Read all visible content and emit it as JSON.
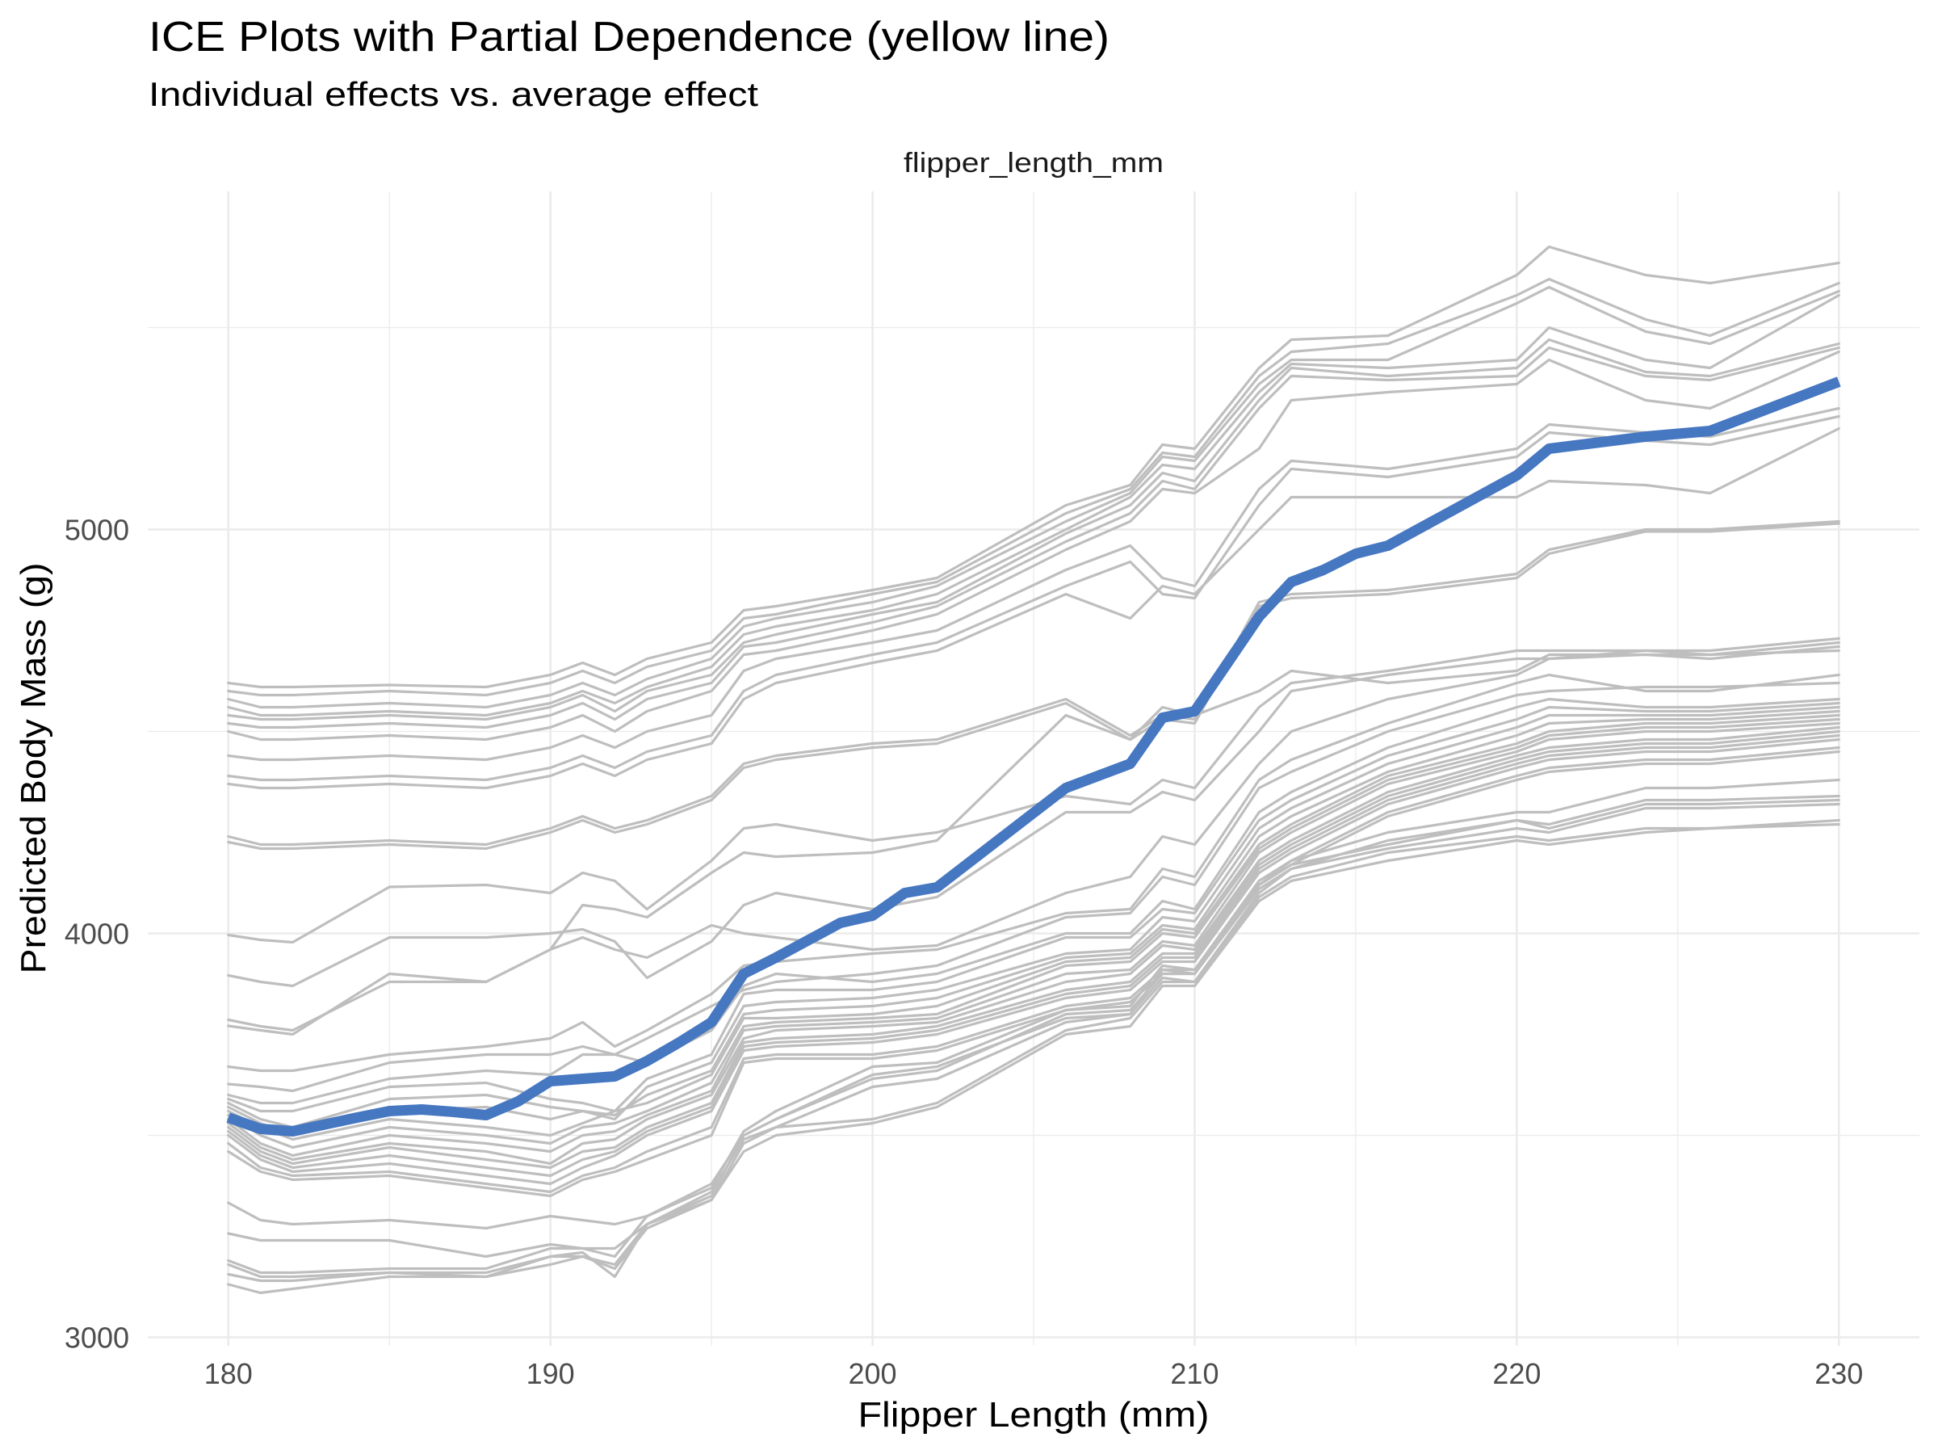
{
  "chart_data": {
    "type": "line",
    "title": "ICE Plots with Partial Dependence (yellow line)",
    "subtitle": "Individual effects vs. average effect",
    "facet_label": "flipper_length_mm",
    "xlabel": "Flipper Length (mm)",
    "ylabel": "Predicted Body Mass (g)",
    "xlim": [
      177.5,
      232.5
    ],
    "ylim": [
      2979,
      5837
    ],
    "x_ticks": [
      180,
      190,
      200,
      210,
      220,
      230
    ],
    "x_tick_labels": [
      "180",
      "190",
      "200",
      "210",
      "220",
      "230"
    ],
    "x_minor_ticks": [
      185,
      195,
      205,
      215,
      225
    ],
    "y_ticks": [
      3000,
      4000,
      5000
    ],
    "y_tick_labels": [
      "3000",
      "4000",
      "5000"
    ],
    "y_minor_ticks": [
      3500,
      4500,
      5500
    ],
    "grid": true,
    "legend": "none",
    "colors": {
      "ice": "#bebebe",
      "pd": "#4677c1",
      "grid": "#ebebeb",
      "tick_text": "#4d4d4d"
    },
    "ice_x": [
      180,
      181,
      182,
      185,
      188,
      190,
      191,
      192,
      193,
      195,
      196,
      197,
      200,
      202,
      206,
      208,
      209,
      210,
      212,
      213,
      216,
      220,
      221,
      224,
      226,
      230
    ],
    "ice_series": [
      [
        4620,
        4610,
        4610,
        4615,
        4610,
        4640,
        4670,
        4640,
        4680,
        4720,
        4800,
        4810,
        4850,
        4880,
        5060,
        5110,
        5210,
        5200,
        5400,
        5470,
        5480,
        5630,
        5700,
        5630,
        5610,
        5660
      ],
      [
        4600,
        4590,
        4590,
        4600,
        4590,
        4620,
        4650,
        4620,
        4660,
        4700,
        4780,
        4790,
        4840,
        4870,
        5040,
        5100,
        5190,
        5180,
        5380,
        5440,
        5460,
        5580,
        5620,
        5520,
        5480,
        5610
      ],
      [
        4580,
        4560,
        4560,
        4570,
        4560,
        4590,
        4620,
        4590,
        4630,
        4680,
        4760,
        4780,
        4820,
        4860,
        5020,
        5090,
        5180,
        5170,
        5360,
        5420,
        5420,
        5560,
        5600,
        5490,
        5460,
        5590
      ],
      [
        4560,
        4540,
        4540,
        4550,
        4540,
        4570,
        4600,
        4570,
        4610,
        4660,
        4740,
        4760,
        4800,
        4840,
        5000,
        5080,
        5160,
        5150,
        5340,
        5410,
        5400,
        5420,
        5500,
        5420,
        5400,
        5580
      ],
      [
        4540,
        4530,
        4530,
        4540,
        4530,
        4560,
        4590,
        4550,
        4600,
        4640,
        4720,
        4740,
        4790,
        4820,
        4990,
        5060,
        5140,
        5120,
        5320,
        5400,
        5380,
        5400,
        5470,
        5390,
        5380,
        5460
      ],
      [
        4520,
        4510,
        4510,
        4520,
        4510,
        4540,
        4570,
        4530,
        4580,
        4620,
        4710,
        4720,
        4770,
        4810,
        4970,
        5040,
        5120,
        5100,
        5300,
        5380,
        5370,
        5380,
        5450,
        5380,
        5370,
        5450
      ],
      [
        4500,
        4480,
        4480,
        4490,
        4480,
        4510,
        4540,
        4500,
        4550,
        4600,
        4690,
        4700,
        4750,
        4790,
        4950,
        5020,
        5100,
        5090,
        5200,
        5320,
        5340,
        5360,
        5420,
        5320,
        5300,
        5440
      ],
      [
        4440,
        4430,
        4430,
        4440,
        4430,
        4460,
        4490,
        4460,
        4500,
        4540,
        4650,
        4680,
        4720,
        4750,
        4900,
        4960,
        4880,
        4860,
        5100,
        5170,
        5150,
        5200,
        5260,
        5240,
        5230,
        5300
      ],
      [
        4390,
        4380,
        4380,
        4390,
        4380,
        4410,
        4440,
        4410,
        4450,
        4490,
        4600,
        4640,
        4690,
        4720,
        4860,
        4920,
        4840,
        4830,
        5060,
        5150,
        5130,
        5180,
        5240,
        5220,
        5210,
        5280
      ],
      [
        4370,
        4360,
        4360,
        4370,
        4360,
        4390,
        4420,
        4390,
        4430,
        4470,
        4580,
        4620,
        4670,
        4700,
        4840,
        4780,
        4860,
        4840,
        5000,
        5080,
        5080,
        5080,
        5120,
        5110,
        5090,
        5250
      ],
      [
        4240,
        4220,
        4220,
        4230,
        4220,
        4260,
        4290,
        4260,
        4280,
        4340,
        4420,
        4440,
        4470,
        4480,
        4580,
        4490,
        4540,
        4530,
        4820,
        4840,
        4850,
        4890,
        4950,
        5000,
        5000,
        5020
      ],
      [
        4226,
        4210,
        4210,
        4220,
        4210,
        4250,
        4280,
        4250,
        4270,
        4330,
        4410,
        4430,
        4460,
        4470,
        4570,
        4480,
        4530,
        4520,
        4810,
        4830,
        4840,
        4880,
        4940,
        4995,
        4995,
        5015
      ],
      [
        3996,
        3984,
        3978,
        4115,
        4120,
        4100,
        4150,
        4130,
        4060,
        4180,
        4260,
        4270,
        4230,
        4250,
        4340,
        4320,
        4380,
        4360,
        4560,
        4620,
        4650,
        4700,
        4700,
        4700,
        4690,
        4720
      ],
      [
        3896,
        3880,
        3870,
        3990,
        3990,
        4000,
        4010,
        3980,
        3890,
        3980,
        4070,
        4100,
        4060,
        4090,
        4300,
        4300,
        4350,
        4330,
        4500,
        4600,
        4640,
        4680,
        4680,
        4700,
        4700,
        4730
      ],
      [
        3786,
        3770,
        3760,
        3880,
        3880,
        3960,
        4070,
        4060,
        4040,
        4150,
        4200,
        4190,
        4200,
        4230,
        4540,
        4480,
        4560,
        4540,
        4600,
        4650,
        4620,
        4650,
        4690,
        4690,
        4680,
        4710
      ],
      [
        3771,
        3760,
        3750,
        3900,
        3880,
        3960,
        3990,
        3960,
        3940,
        4020,
        4000,
        3990,
        3960,
        3970,
        4100,
        4140,
        4240,
        4220,
        4420,
        4500,
        4580,
        4640,
        4680,
        4690,
        4690,
        4700
      ],
      [
        3670,
        3660,
        3660,
        3700,
        3720,
        3740,
        3780,
        3720,
        3760,
        3850,
        3920,
        3930,
        3950,
        3960,
        4050,
        4060,
        4160,
        4140,
        4380,
        4430,
        4520,
        4620,
        4640,
        4600,
        4600,
        4640
      ],
      [
        3627,
        3620,
        3610,
        3680,
        3700,
        3700,
        3720,
        3700,
        3740,
        3820,
        3860,
        3880,
        3900,
        3920,
        4040,
        4050,
        4140,
        4120,
        4360,
        4400,
        4500,
        4590,
        4600,
        4610,
        4610,
        4620
      ],
      [
        3600,
        3580,
        3580,
        3640,
        3660,
        3650,
        3700,
        3700,
        3680,
        3760,
        3870,
        3900,
        3880,
        3900,
        4000,
        4000,
        4080,
        4060,
        4300,
        4350,
        4460,
        4560,
        4580,
        4560,
        4560,
        4580
      ],
      [
        3590,
        3560,
        3560,
        3620,
        3630,
        3590,
        3580,
        3560,
        3640,
        3700,
        3850,
        3860,
        3860,
        3880,
        3990,
        3990,
        4060,
        4050,
        4280,
        4330,
        4440,
        4530,
        4560,
        4550,
        4550,
        4570
      ],
      [
        3580,
        3540,
        3520,
        3590,
        3600,
        3570,
        3560,
        3540,
        3620,
        3680,
        3820,
        3830,
        3840,
        3860,
        3950,
        3960,
        4040,
        4030,
        4260,
        4310,
        4420,
        4510,
        4540,
        4540,
        4540,
        4560
      ],
      [
        3570,
        3530,
        3500,
        3560,
        3570,
        3540,
        3560,
        3550,
        3600,
        3660,
        3800,
        3810,
        3820,
        3840,
        3940,
        3950,
        4020,
        4010,
        4240,
        4290,
        4400,
        4490,
        4520,
        4530,
        4530,
        4550
      ],
      [
        3560,
        3520,
        3490,
        3540,
        3520,
        3500,
        3530,
        3560,
        3580,
        3650,
        3790,
        3790,
        3800,
        3820,
        3930,
        3940,
        4010,
        4000,
        4220,
        4270,
        4390,
        4470,
        4500,
        4520,
        4520,
        4540
      ],
      [
        3550,
        3500,
        3470,
        3520,
        3500,
        3480,
        3520,
        3530,
        3560,
        3630,
        3770,
        3780,
        3790,
        3800,
        3920,
        3930,
        4000,
        3990,
        4210,
        4260,
        4380,
        4460,
        4490,
        4510,
        4510,
        4530
      ],
      [
        3540,
        3480,
        3450,
        3500,
        3480,
        3460,
        3500,
        3510,
        3550,
        3610,
        3760,
        3770,
        3780,
        3790,
        3900,
        3910,
        3980,
        3970,
        4200,
        4250,
        4370,
        4450,
        4480,
        4500,
        4500,
        4520
      ],
      [
        3530,
        3470,
        3440,
        3480,
        3460,
        3430,
        3480,
        3490,
        3540,
        3600,
        3740,
        3760,
        3770,
        3780,
        3880,
        3900,
        3970,
        3960,
        4180,
        4230,
        4350,
        4440,
        4460,
        4480,
        4480,
        4510
      ],
      [
        3520,
        3460,
        3430,
        3470,
        3440,
        3420,
        3460,
        3470,
        3520,
        3580,
        3730,
        3740,
        3750,
        3770,
        3860,
        3880,
        3950,
        3950,
        4170,
        4220,
        4340,
        4430,
        4450,
        4470,
        4470,
        4500
      ],
      [
        3510,
        3450,
        3420,
        3450,
        3420,
        3400,
        3440,
        3460,
        3510,
        3570,
        3720,
        3730,
        3740,
        3760,
        3850,
        3870,
        3940,
        3940,
        4160,
        4210,
        4330,
        4420,
        4440,
        4460,
        4460,
        4490
      ],
      [
        3500,
        3440,
        3410,
        3430,
        3400,
        3380,
        3420,
        3450,
        3500,
        3560,
        3710,
        3720,
        3730,
        3750,
        3840,
        3860,
        3930,
        3930,
        4150,
        4200,
        4320,
        4410,
        4430,
        4450,
        4450,
        4480
      ],
      [
        3480,
        3420,
        3400,
        3410,
        3380,
        3360,
        3400,
        3420,
        3460,
        3520,
        3690,
        3700,
        3700,
        3720,
        3820,
        3840,
        3910,
        3910,
        4130,
        4180,
        4300,
        4390,
        4410,
        4430,
        4430,
        4460
      ],
      [
        3460,
        3410,
        3390,
        3400,
        3370,
        3350,
        3390,
        3410,
        3440,
        3500,
        3680,
        3690,
        3690,
        3710,
        3810,
        3830,
        3900,
        3900,
        4120,
        4170,
        4290,
        4380,
        4400,
        4420,
        4420,
        4450
      ],
      [
        3333,
        3290,
        3280,
        3290,
        3270,
        3300,
        3290,
        3280,
        3300,
        3380,
        3500,
        3540,
        3640,
        3660,
        3800,
        3810,
        3900,
        3900,
        4120,
        4180,
        4250,
        4300,
        4300,
        4360,
        4360,
        4380
      ],
      [
        3257,
        3240,
        3240,
        3240,
        3200,
        3230,
        3220,
        3220,
        3280,
        3360,
        3490,
        3520,
        3620,
        3640,
        3780,
        3800,
        3890,
        3880,
        4100,
        4160,
        4230,
        4280,
        4270,
        4330,
        4330,
        4340
      ],
      [
        3190,
        3160,
        3160,
        3170,
        3170,
        3220,
        3220,
        3200,
        3300,
        3370,
        3510,
        3560,
        3670,
        3680,
        3810,
        3820,
        3920,
        3910,
        4120,
        4170,
        4220,
        4280,
        4260,
        4320,
        4320,
        4330
      ],
      [
        3180,
        3150,
        3150,
        3160,
        3150,
        3200,
        3200,
        3180,
        3280,
        3350,
        3500,
        3540,
        3650,
        3670,
        3790,
        3800,
        3910,
        3900,
        4110,
        4160,
        4210,
        4260,
        4250,
        4310,
        4310,
        4320
      ],
      [
        3156,
        3140,
        3140,
        3160,
        3160,
        3200,
        3210,
        3150,
        3280,
        3340,
        3480,
        3520,
        3540,
        3580,
        3760,
        3790,
        3880,
        3880,
        4090,
        4140,
        4200,
        4240,
        4230,
        4260,
        4260,
        4280
      ],
      [
        3131,
        3110,
        3120,
        3150,
        3150,
        3180,
        3200,
        3170,
        3270,
        3340,
        3460,
        3500,
        3530,
        3570,
        3750,
        3770,
        3870,
        3870,
        4080,
        4130,
        4180,
        4230,
        4220,
        4250,
        4260,
        4270
      ]
    ],
    "pd_x": [
      180,
      181,
      182,
      184,
      185,
      186,
      187,
      188,
      189,
      190,
      192,
      193,
      194,
      195,
      196,
      197,
      199,
      200,
      201,
      202,
      206,
      208,
      209,
      210,
      212,
      213,
      214,
      215,
      216,
      220,
      221,
      224,
      226,
      230
    ],
    "pd_y": [
      3544,
      3516,
      3510,
      3544,
      3560,
      3564,
      3558,
      3550,
      3584,
      3634,
      3646,
      3684,
      3730,
      3780,
      3900,
      3940,
      4026,
      4044,
      4100,
      4114,
      4360,
      4420,
      4534,
      4550,
      4784,
      4870,
      4900,
      4940,
      4960,
      5134,
      5200,
      5230,
      5244,
      5366
    ]
  }
}
